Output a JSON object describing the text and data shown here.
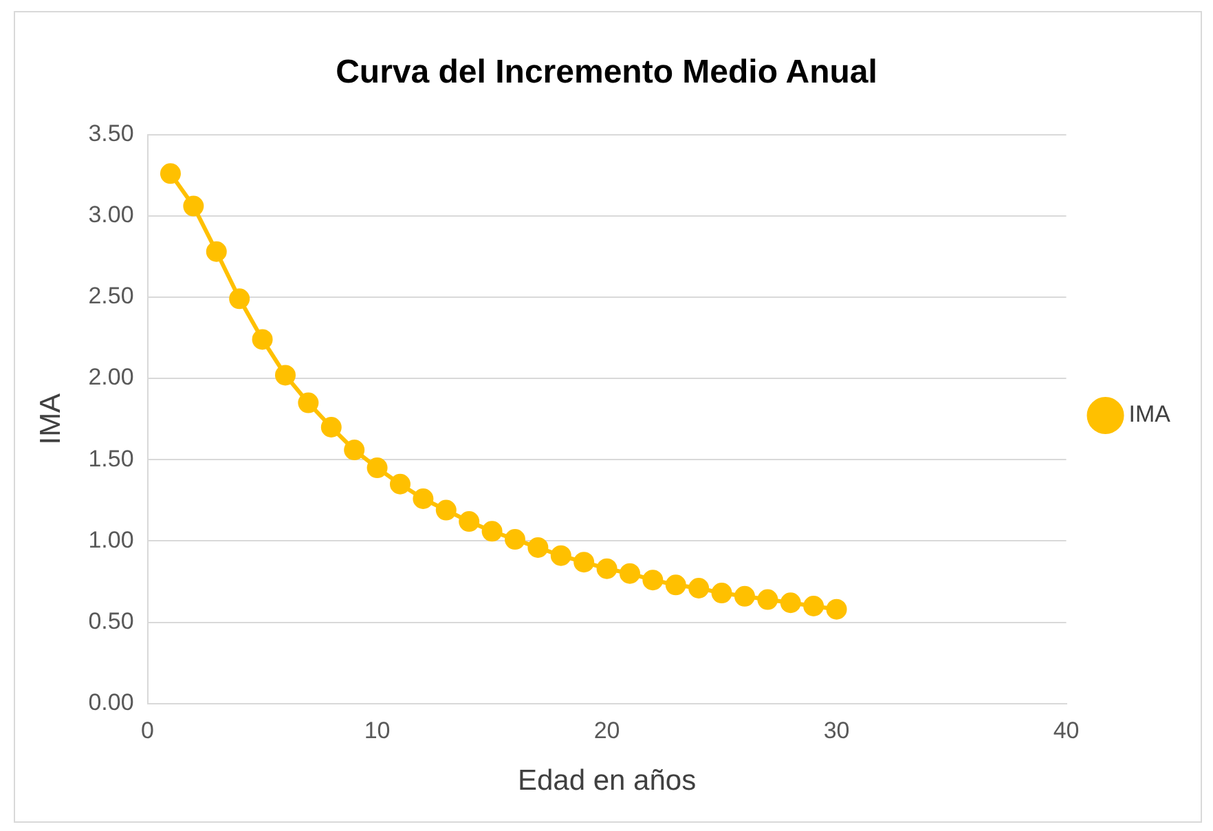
{
  "chart_data": {
    "type": "line",
    "title": "Curva del Incremento Medio Anual",
    "xlabel": "Edad en años",
    "ylabel": "IMA",
    "x": [
      1,
      2,
      3,
      4,
      5,
      6,
      7,
      8,
      9,
      10,
      11,
      12,
      13,
      14,
      15,
      16,
      17,
      18,
      19,
      20,
      21,
      22,
      23,
      24,
      25,
      26,
      27,
      28,
      29,
      30
    ],
    "series": [
      {
        "name": "IMA",
        "color": "#ffc000",
        "values": [
          3.26,
          3.06,
          2.78,
          2.49,
          2.24,
          2.02,
          1.85,
          1.7,
          1.56,
          1.45,
          1.35,
          1.26,
          1.19,
          1.12,
          1.06,
          1.01,
          0.96,
          0.91,
          0.87,
          0.83,
          0.8,
          0.76,
          0.73,
          0.71,
          0.68,
          0.66,
          0.64,
          0.62,
          0.6,
          0.58
        ]
      }
    ],
    "xlim": [
      0,
      40
    ],
    "xticks": [
      0,
      10,
      20,
      30,
      40
    ],
    "ylim": [
      0,
      3.5
    ],
    "yticks": [
      {
        "value": 0,
        "label": "0.00"
      },
      {
        "value": 0.5,
        "label": "0.50"
      },
      {
        "value": 1,
        "label": "1.00"
      },
      {
        "value": 1.5,
        "label": "1.50"
      },
      {
        "value": 2,
        "label": "2.00"
      },
      {
        "value": 2.5,
        "label": "2.50"
      },
      {
        "value": 3,
        "label": "3.00"
      },
      {
        "value": 3.5,
        "label": "3.50"
      }
    ],
    "grid": "y",
    "legend": "right",
    "marker": "circle",
    "line_style": "solid"
  }
}
